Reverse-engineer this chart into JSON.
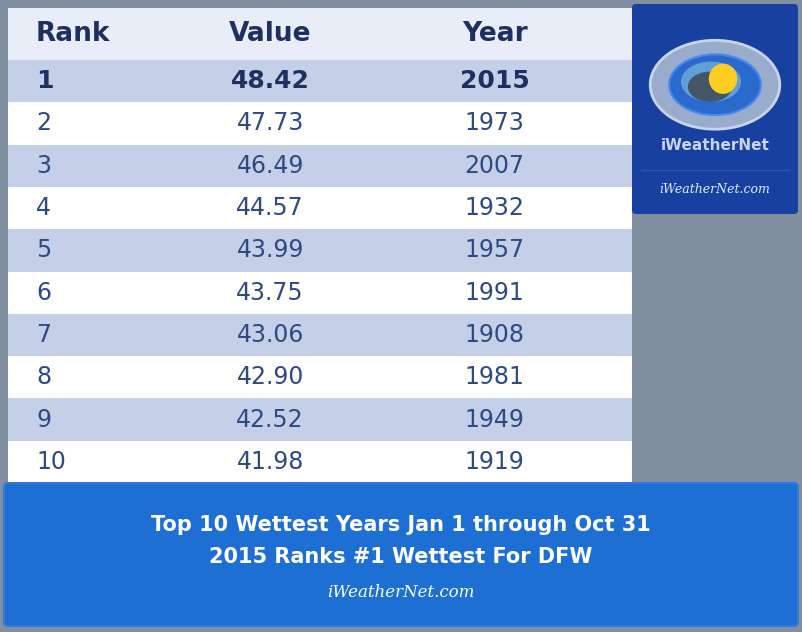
{
  "ranks": [
    "1",
    "2",
    "3",
    "4",
    "5",
    "6",
    "7",
    "8",
    "9",
    "10"
  ],
  "values": [
    "48.42",
    "47.73",
    "46.49",
    "44.57",
    "43.99",
    "43.75",
    "43.06",
    "42.90",
    "42.52",
    "41.98"
  ],
  "years": [
    "2015",
    "1973",
    "2007",
    "1932",
    "1957",
    "1991",
    "1908",
    "1981",
    "1949",
    "1919"
  ],
  "header": [
    "Rank",
    "Value",
    "Year"
  ],
  "row_colors": [
    "#c5d0e8",
    "#ffffff",
    "#c5d0e8",
    "#ffffff",
    "#c5d0e8",
    "#ffffff",
    "#c5d0e8",
    "#ffffff",
    "#c5d0e8",
    "#ffffff"
  ],
  "header_color": "#e8edf7",
  "text_color_normal": "#2e4a82",
  "text_color_bold": "#1e3060",
  "footer_bg": "#1e6fd4",
  "footer_text1": "Top 10 Wettest Years Jan 1 through Oct 31",
  "footer_text2": "2015 Ranks #1 Wettest For DFW",
  "footer_text3": "iWeatherNet.com",
  "outer_bg": "#8090a0",
  "logo_bg": "#1840a0",
  "logo_text1": "iWeatherNet",
  "logo_text2": "iWeatherNet.com"
}
